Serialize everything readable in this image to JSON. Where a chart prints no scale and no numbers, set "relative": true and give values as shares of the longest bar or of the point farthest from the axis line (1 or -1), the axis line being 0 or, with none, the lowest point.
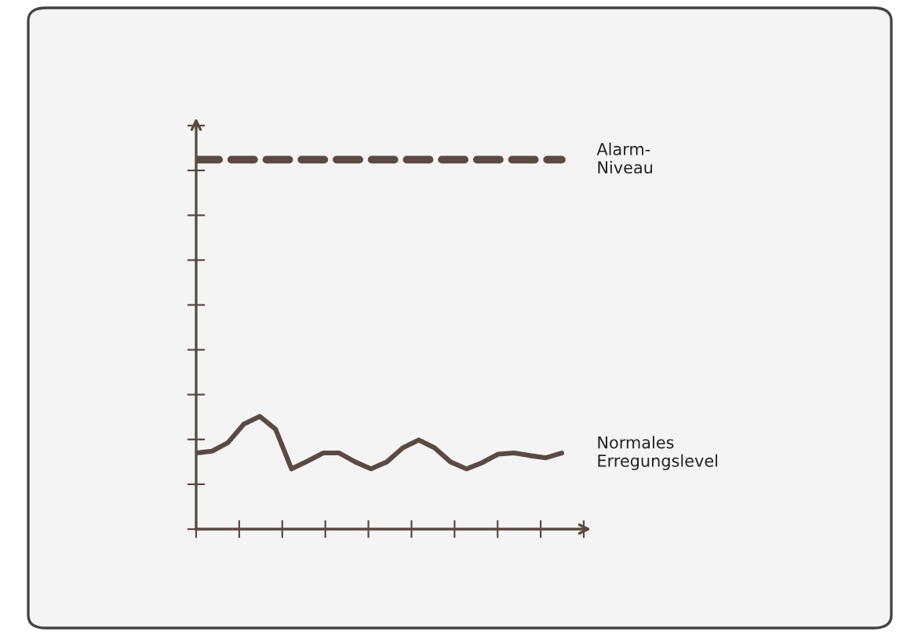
{
  "chart_data": {
    "type": "line",
    "relative": true,
    "categories": [
      null,
      null,
      null,
      null,
      null,
      null,
      null,
      null,
      null,
      null,
      null,
      null,
      null,
      null,
      null,
      null,
      null,
      null,
      null,
      null,
      null,
      null,
      null,
      null
    ],
    "series": [
      {
        "name": "Alarm-\nNiveau",
        "color": "#5b4a43",
        "line_style": "dashed",
        "values": [
          1,
          1,
          1,
          1,
          1,
          1,
          1,
          1,
          1,
          1,
          1,
          1,
          1,
          1,
          1,
          1,
          1,
          1,
          1,
          1,
          1,
          1,
          1,
          1
        ]
      },
      {
        "name": "Normales\nErregungslevel",
        "color": "#5b4a43",
        "line_style": "solid",
        "values": [
          0.206,
          0.211,
          0.234,
          0.284,
          0.305,
          0.27,
          0.163,
          0.184,
          0.206,
          0.206,
          0.182,
          0.163,
          0.182,
          0.22,
          0.241,
          0.22,
          0.182,
          0.163,
          0.18,
          0.203,
          0.206,
          0.199,
          0.193,
          0.206
        ]
      }
    ],
    "legend": false,
    "grid": false,
    "tick_labels": false,
    "marker": "none"
  }
}
